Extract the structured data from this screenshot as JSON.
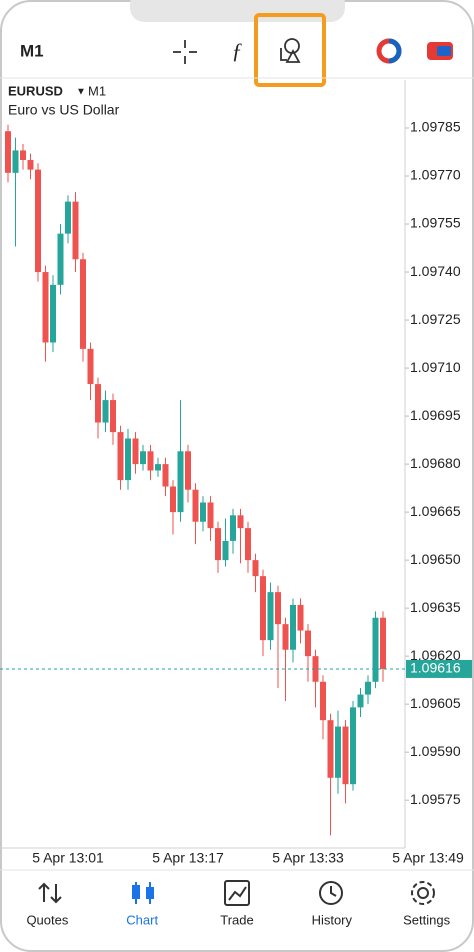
{
  "header": {
    "timeframe": "M1"
  },
  "chart_data": {
    "type": "candlestick",
    "symbol": "EURUSD",
    "period": "M1",
    "subtitle": "Euro vs US Dollar",
    "categories": [
      null,
      null,
      null,
      null,
      null,
      null,
      null,
      null,
      "5 Apr 13:01",
      null,
      null,
      null,
      null,
      null,
      null,
      null,
      null,
      null,
      null,
      null,
      null,
      null,
      null,
      null,
      "5 Apr 13:17",
      null,
      null,
      null,
      null,
      null,
      null,
      null,
      null,
      null,
      null,
      null,
      null,
      null,
      null,
      null,
      "5 Apr 13:33",
      null,
      null,
      null,
      null,
      null,
      null,
      null,
      null,
      null,
      null,
      null,
      null,
      null,
      null,
      null,
      "5 Apr 13:49"
    ],
    "open": [
      1.09784,
      1.09771,
      1.09778,
      1.09775,
      1.09772,
      1.0974,
      1.09718,
      1.09736,
      1.09752,
      1.09762,
      1.09744,
      1.09716,
      1.09705,
      1.09693,
      1.097,
      1.0969,
      1.09675,
      1.09688,
      1.0968,
      1.09684,
      1.09678,
      1.0968,
      1.09673,
      1.09665,
      1.09684,
      1.09672,
      1.09662,
      1.09668,
      1.0966,
      1.0965,
      1.09656,
      1.09664,
      1.0966,
      1.0965,
      1.09645,
      1.09625,
      1.0964,
      1.0963,
      1.09622,
      1.09636,
      1.09628,
      1.0962,
      1.09612,
      1.096,
      1.09582,
      1.09598,
      1.0958,
      1.09604,
      1.09608,
      1.09612,
      1.09632,
      null,
      null,
      null,
      null,
      null,
      null
    ],
    "high": [
      1.09786,
      1.09782,
      1.0978,
      1.09777,
      1.09774,
      1.09742,
      1.09739,
      1.09755,
      1.09764,
      1.09765,
      1.09746,
      1.09718,
      1.09707,
      1.09703,
      1.09702,
      1.09692,
      1.09691,
      1.0969,
      1.09686,
      1.09686,
      1.09682,
      1.09682,
      1.09675,
      1.097,
      1.09686,
      1.09674,
      1.0967,
      1.0967,
      1.09662,
      1.09663,
      1.09666,
      1.09666,
      1.09662,
      1.09652,
      1.09647,
      1.09643,
      1.09642,
      1.09632,
      1.09638,
      1.09638,
      1.0963,
      1.09622,
      1.09614,
      1.09602,
      1.09603,
      1.096,
      1.09606,
      1.0961,
      1.09614,
      1.09634,
      1.09634,
      null,
      null,
      null,
      null,
      null,
      null
    ],
    "low": [
      1.09768,
      1.09748,
      1.09772,
      1.09769,
      1.09737,
      1.09712,
      1.09715,
      1.09733,
      1.09749,
      1.0974,
      1.09712,
      1.097,
      1.09688,
      1.0969,
      1.09686,
      1.09672,
      1.09672,
      1.09677,
      1.09678,
      1.09675,
      1.09676,
      1.0967,
      1.09658,
      1.09662,
      1.09668,
      1.09655,
      1.09659,
      1.09656,
      1.09646,
      1.09648,
      1.09652,
      1.09649,
      1.09646,
      1.0964,
      1.0962,
      1.09622,
      1.0961,
      1.09606,
      1.09618,
      1.09624,
      1.09612,
      1.09604,
      1.09594,
      1.09564,
      1.09577,
      1.09574,
      1.09578,
      1.09601,
      1.09605,
      1.0961,
      1.09612,
      null,
      null,
      null,
      null,
      null,
      null
    ],
    "close": [
      1.09771,
      1.09778,
      1.09775,
      1.09772,
      1.0974,
      1.09718,
      1.09736,
      1.09752,
      1.09762,
      1.09744,
      1.09716,
      1.09705,
      1.09693,
      1.097,
      1.0969,
      1.09675,
      1.09688,
      1.0968,
      1.09684,
      1.09678,
      1.0968,
      1.09673,
      1.09665,
      1.09684,
      1.09672,
      1.09662,
      1.09668,
      1.0966,
      1.0965,
      1.09656,
      1.09664,
      1.0966,
      1.0965,
      1.09645,
      1.09625,
      1.0964,
      1.0963,
      1.09622,
      1.09636,
      1.09628,
      1.0962,
      1.09612,
      1.096,
      1.09582,
      1.09598,
      1.0958,
      1.09604,
      1.09608,
      1.09612,
      1.09632,
      1.09616,
      null,
      null,
      null,
      null,
      null,
      null
    ],
    "up_color": "#26a69a",
    "down_color": "#ef5350",
    "current_price": 1.09616,
    "ylim": [
      1.09561,
      1.098
    ],
    "yticks": [
      1.09785,
      {
        "value": 1.0977,
        "label": "1.09770"
      },
      1.09755,
      {
        "value": 1.0974,
        "label": "1.09740"
      },
      1.09725,
      {
        "value": 1.0971,
        "label": "1.09710"
      },
      1.09695,
      {
        "value": 1.0968,
        "label": "1.09680"
      },
      1.09665,
      {
        "value": 1.0965,
        "label": "1.09650"
      },
      1.09635,
      {
        "value": 1.0962,
        "label": "1.09620"
      },
      1.09605,
      {
        "value": 1.0959,
        "label": "1.09590"
      },
      1.09575
    ]
  },
  "tabs": [
    "Quotes",
    "Chart",
    "Trade",
    "History",
    "Settings"
  ]
}
